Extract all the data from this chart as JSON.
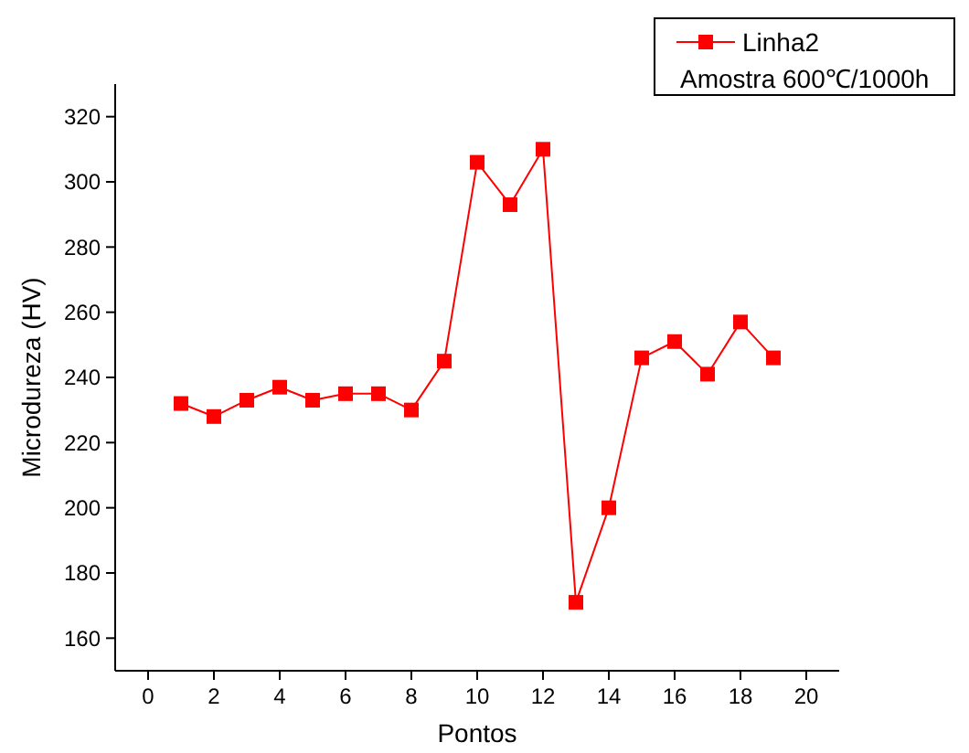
{
  "chart_data": {
    "type": "line",
    "xlabel": "Pontos",
    "ylabel": "Microdureza (HV)",
    "x": [
      1,
      2,
      3,
      4,
      5,
      6,
      7,
      8,
      9,
      10,
      11,
      12,
      13,
      14,
      15,
      16,
      17,
      18,
      19
    ],
    "series": [
      {
        "name": "Linha2",
        "color": "#ff0000",
        "values": [
          232,
          228,
          233,
          237,
          233,
          235,
          235,
          230,
          245,
          306,
          293,
          310,
          171,
          200,
          246,
          251,
          241,
          257,
          246
        ]
      }
    ],
    "xlim": [
      -1,
      21
    ],
    "xticks": [
      0,
      2,
      4,
      6,
      8,
      10,
      12,
      14,
      16,
      18,
      20
    ],
    "ylim": [
      150,
      330
    ],
    "yticks": [
      160,
      180,
      200,
      220,
      240,
      260,
      280,
      300,
      320
    ],
    "marker": "square",
    "line_style": "solid",
    "legend": "top right",
    "grid": false,
    "annotations": [
      "Amostra 600℃/1000h"
    ]
  }
}
